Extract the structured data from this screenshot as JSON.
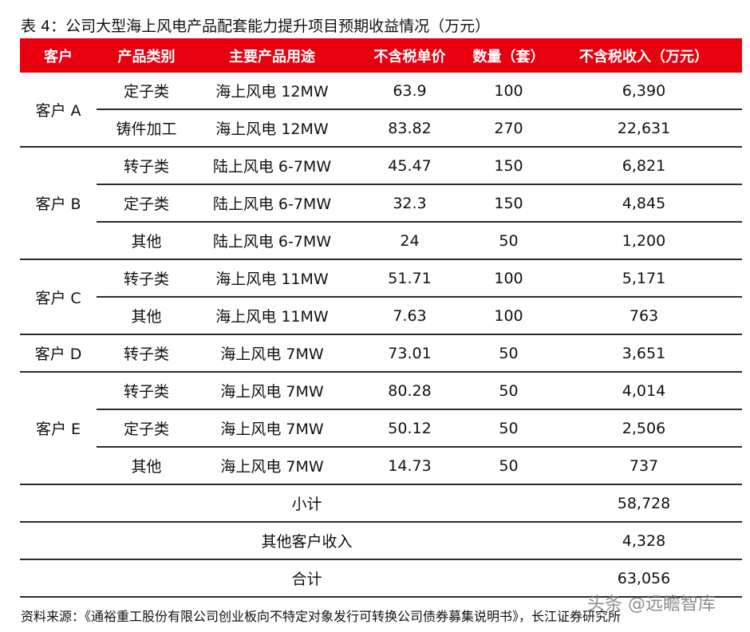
{
  "caption": "表 4：公司大型海上风电产品配套能力提升项目预期收益情况（万元）",
  "header": {
    "client": "客户",
    "category": "产品类别",
    "usage": "主要产品用途",
    "unit_price": "不含税单价",
    "quantity": "数量（套）",
    "revenue": "不含税收入（万元）"
  },
  "rows": [
    {
      "client": "客户 A",
      "category": "定子类",
      "usage": "海上风电 12MW",
      "unit_price": "63.9",
      "quantity": "100",
      "revenue": "6,390"
    },
    {
      "client": "",
      "category": "铸件加工",
      "usage": "海上风电 12MW",
      "unit_price": "83.82",
      "quantity": "270",
      "revenue": "22,631"
    },
    {
      "client": "客户 B",
      "category": "转子类",
      "usage": "陆上风电 6-7MW",
      "unit_price": "45.47",
      "quantity": "150",
      "revenue": "6,821"
    },
    {
      "client": "",
      "category": "定子类",
      "usage": "陆上风电 6-7MW",
      "unit_price": "32.3",
      "quantity": "150",
      "revenue": "4,845"
    },
    {
      "client": "",
      "category": "其他",
      "usage": "陆上风电 6-7MW",
      "unit_price": "24",
      "quantity": "50",
      "revenue": "1,200"
    },
    {
      "client": "客户 C",
      "category": "转子类",
      "usage": "海上风电 11MW",
      "unit_price": "51.71",
      "quantity": "100",
      "revenue": "5,171"
    },
    {
      "client": "",
      "category": "其他",
      "usage": "海上风电 11MW",
      "unit_price": "7.63",
      "quantity": "100",
      "revenue": "763"
    },
    {
      "client": "客户 D",
      "category": "转子类",
      "usage": "海上风电 7MW",
      "unit_price": "73.01",
      "quantity": "50",
      "revenue": "3,651"
    },
    {
      "client": "客户 E",
      "category": "转子类",
      "usage": "海上风电 7MW",
      "unit_price": "80.28",
      "quantity": "50",
      "revenue": "4,014"
    },
    {
      "client": "",
      "category": "定子类",
      "usage": "海上风电 7MW",
      "unit_price": "50.12",
      "quantity": "50",
      "revenue": "2,506"
    },
    {
      "client": "",
      "category": "其他",
      "usage": "海上风电 7MW",
      "unit_price": "14.73",
      "quantity": "50",
      "revenue": "737"
    }
  ],
  "summary": {
    "subtotal_label": "小计",
    "subtotal_value": "58,728",
    "other_label": "其他客户收入",
    "other_value": "4,328",
    "total_label": "合计",
    "total_value": "63,056"
  },
  "source": "资料来源：《通裕重工股份有限公司创业板向不特定对象发行可转换公司债券募集说明书》，长江证券研究所",
  "watermark": "头条 @远瞻智库",
  "colors": {
    "header_bg": "#e8000f",
    "header_text": "#ffffff",
    "rule": "#2b2b2b"
  }
}
